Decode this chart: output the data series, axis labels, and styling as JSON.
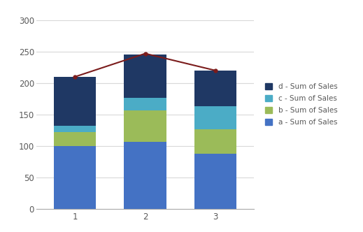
{
  "categories": [
    "1",
    "2",
    "3"
  ],
  "a_values": [
    100,
    107,
    88
  ],
  "b_values": [
    22,
    50,
    38
  ],
  "c_values": [
    10,
    20,
    37
  ],
  "d_values": [
    78,
    68,
    57
  ],
  "line_values": [
    210,
    247,
    220
  ],
  "color_a": "#4472C4",
  "color_b": "#9BBB59",
  "color_c": "#4BACC6",
  "color_d": "#1F3864",
  "color_line": "#7B1C1C",
  "legend_labels": [
    "d - Sum of Sales",
    "c - Sum of Sales",
    "b - Sum of Sales",
    "a - Sum of Sales"
  ],
  "ylim": [
    0,
    310
  ],
  "yticks": [
    0,
    50,
    100,
    150,
    200,
    250,
    300
  ],
  "bar_width": 0.6,
  "background_color": "#FFFFFF",
  "grid_color": "#D9D9D9",
  "figsize": [
    5.19,
    3.32
  ],
  "dpi": 100
}
